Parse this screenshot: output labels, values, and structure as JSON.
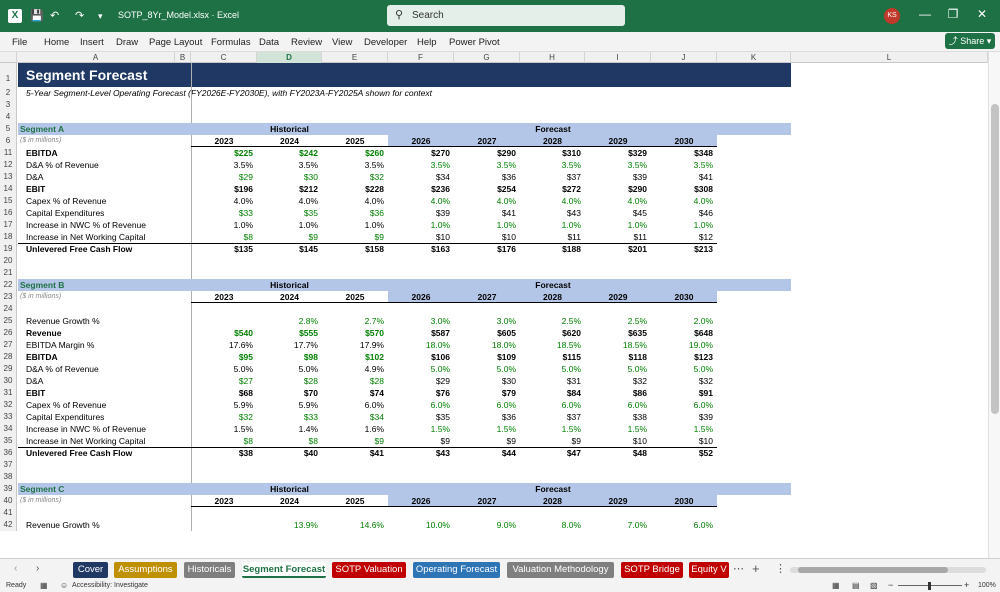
{
  "window": {
    "title": "SOTP_8Yr_Model.xlsx",
    "app": "Excel",
    "search_placeholder": "Search",
    "user_initials": "KS",
    "app_icon": "X"
  },
  "ribbon": {
    "menus": [
      "File",
      "Home",
      "Insert",
      "Draw",
      "Page Layout",
      "Formulas",
      "Data",
      "Review",
      "View",
      "Developer",
      "Help",
      "Power Pivot"
    ],
    "share_label": "Share"
  },
  "grid": {
    "columns": [
      "A",
      "B",
      "C",
      "D",
      "E",
      "F",
      "G",
      "H",
      "I",
      "J",
      "K",
      "L"
    ],
    "row_numbers": [
      "1",
      "2",
      "3",
      "4",
      "5",
      "6",
      "11",
      "12",
      "13",
      "14",
      "15",
      "16",
      "17",
      "18",
      "19",
      "20",
      "21",
      "22",
      "23",
      "24",
      "25",
      "26",
      "27",
      "28",
      "29",
      "30",
      "31",
      "32",
      "33",
      "34",
      "35",
      "36",
      "37",
      "38",
      "39",
      "40",
      "41",
      "42"
    ],
    "title": "Segment Forecast",
    "subtitle": "5-Year Segment-Level Operating Forecast (FY2026E-FY2030E), with FY2023A-FY2025A shown for context",
    "units": "($ in millions)",
    "historical_label": "Historical",
    "forecast_label": "Forecast",
    "years": [
      "2023",
      "2024",
      "2025",
      "2026",
      "2027",
      "2028",
      "2029",
      "2030"
    ],
    "segments": [
      {
        "name": "Segment A",
        "rows": [
          {
            "label": "EBITDA",
            "bold": true,
            "values": [
              "$225",
              "$242",
              "$260",
              "$270",
              "$290",
              "$310",
              "$329",
              "$348"
            ],
            "green": [
              1,
              1,
              1,
              0,
              0,
              0,
              0,
              0
            ]
          },
          {
            "label": "D&A % of Revenue",
            "values": [
              "3.5%",
              "3.5%",
              "3.5%",
              "3.5%",
              "3.5%",
              "3.5%",
              "3.5%",
              "3.5%"
            ],
            "green": [
              0,
              0,
              0,
              1,
              1,
              1,
              1,
              1
            ]
          },
          {
            "label": "D&A",
            "values": [
              "$29",
              "$30",
              "$32",
              "$34",
              "$36",
              "$37",
              "$39",
              "$41"
            ],
            "green": [
              1,
              1,
              1,
              0,
              0,
              0,
              0,
              0
            ]
          },
          {
            "label": "EBIT",
            "bold": true,
            "values": [
              "$196",
              "$212",
              "$228",
              "$236",
              "$254",
              "$272",
              "$290",
              "$308"
            ],
            "green": [
              0,
              0,
              0,
              0,
              0,
              0,
              0,
              0
            ]
          },
          {
            "label": "Capex % of Revenue",
            "values": [
              "4.0%",
              "4.0%",
              "4.0%",
              "4.0%",
              "4.0%",
              "4.0%",
              "4.0%",
              "4.0%"
            ],
            "green": [
              0,
              0,
              0,
              1,
              1,
              1,
              1,
              1
            ]
          },
          {
            "label": "Capital Expenditures",
            "values": [
              "$33",
              "$35",
              "$36",
              "$39",
              "$41",
              "$43",
              "$45",
              "$46"
            ],
            "green": [
              1,
              1,
              1,
              0,
              0,
              0,
              0,
              0
            ]
          },
          {
            "label": "Increase in NWC % of Revenue",
            "values": [
              "1.0%",
              "1.0%",
              "1.0%",
              "1.0%",
              "1.0%",
              "1.0%",
              "1.0%",
              "1.0%"
            ],
            "green": [
              0,
              0,
              0,
              1,
              1,
              1,
              1,
              1
            ]
          },
          {
            "label": "Increase in Net Working Capital",
            "values": [
              "$8",
              "$9",
              "$9",
              "$10",
              "$10",
              "$11",
              "$11",
              "$12"
            ],
            "green": [
              1,
              1,
              1,
              0,
              0,
              0,
              0,
              0
            ]
          },
          {
            "label": "Unlevered Free Cash Flow",
            "bold": true,
            "total": true,
            "values": [
              "$135",
              "$145",
              "$158",
              "$163",
              "$176",
              "$188",
              "$201",
              "$213"
            ],
            "green": [
              0,
              0,
              0,
              0,
              0,
              0,
              0,
              0
            ]
          }
        ]
      },
      {
        "name": "Segment B",
        "rows": [
          {
            "label": "",
            "values": [
              "",
              "",
              "",
              "",
              "",
              "",
              "",
              ""
            ],
            "green": [
              0,
              0,
              0,
              0,
              0,
              0,
              0,
              0
            ]
          },
          {
            "label": "Revenue Growth %",
            "values": [
              "",
              "2.8%",
              "2.7%",
              "3.0%",
              "3.0%",
              "2.5%",
              "2.5%",
              "2.0%"
            ],
            "green": [
              0,
              1,
              1,
              1,
              1,
              1,
              1,
              1
            ]
          },
          {
            "label": "Revenue",
            "bold": true,
            "values": [
              "$540",
              "$555",
              "$570",
              "$587",
              "$605",
              "$620",
              "$635",
              "$648"
            ],
            "green": [
              1,
              1,
              1,
              0,
              0,
              0,
              0,
              0
            ]
          },
          {
            "label": "EBITDA Margin %",
            "values": [
              "17.6%",
              "17.7%",
              "17.9%",
              "18.0%",
              "18.0%",
              "18.5%",
              "18.5%",
              "19.0%"
            ],
            "green": [
              0,
              0,
              0,
              1,
              1,
              1,
              1,
              1
            ]
          },
          {
            "label": "EBITDA",
            "bold": true,
            "values": [
              "$95",
              "$98",
              "$102",
              "$106",
              "$109",
              "$115",
              "$118",
              "$123"
            ],
            "green": [
              1,
              1,
              1,
              0,
              0,
              0,
              0,
              0
            ]
          },
          {
            "label": "D&A % of Revenue",
            "values": [
              "5.0%",
              "5.0%",
              "4.9%",
              "5.0%",
              "5.0%",
              "5.0%",
              "5.0%",
              "5.0%"
            ],
            "green": [
              0,
              0,
              0,
              1,
              1,
              1,
              1,
              1
            ]
          },
          {
            "label": "D&A",
            "values": [
              "$27",
              "$28",
              "$28",
              "$29",
              "$30",
              "$31",
              "$32",
              "$32"
            ],
            "green": [
              1,
              1,
              1,
              0,
              0,
              0,
              0,
              0
            ]
          },
          {
            "label": "EBIT",
            "bold": true,
            "values": [
              "$68",
              "$70",
              "$74",
              "$76",
              "$79",
              "$84",
              "$86",
              "$91"
            ],
            "green": [
              0,
              0,
              0,
              0,
              0,
              0,
              0,
              0
            ]
          },
          {
            "label": "Capex % of Revenue",
            "values": [
              "5.9%",
              "5.9%",
              "6.0%",
              "6.0%",
              "6.0%",
              "6.0%",
              "6.0%",
              "6.0%"
            ],
            "green": [
              0,
              0,
              0,
              1,
              1,
              1,
              1,
              1
            ]
          },
          {
            "label": "Capital Expenditures",
            "values": [
              "$32",
              "$33",
              "$34",
              "$35",
              "$36",
              "$37",
              "$38",
              "$39"
            ],
            "green": [
              1,
              1,
              1,
              0,
              0,
              0,
              0,
              0
            ]
          },
          {
            "label": "Increase in NWC % of Revenue",
            "values": [
              "1.5%",
              "1.4%",
              "1.6%",
              "1.5%",
              "1.5%",
              "1.5%",
              "1.5%",
              "1.5%"
            ],
            "green": [
              0,
              0,
              0,
              1,
              1,
              1,
              1,
              1
            ]
          },
          {
            "label": "Increase in Net Working Capital",
            "values": [
              "$8",
              "$8",
              "$9",
              "$9",
              "$9",
              "$9",
              "$10",
              "$10"
            ],
            "green": [
              1,
              1,
              1,
              0,
              0,
              0,
              0,
              0
            ]
          },
          {
            "label": "Unlevered Free Cash Flow",
            "bold": true,
            "total": true,
            "values": [
              "$38",
              "$40",
              "$41",
              "$43",
              "$44",
              "$47",
              "$48",
              "$52"
            ],
            "green": [
              0,
              0,
              0,
              0,
              0,
              0,
              0,
              0
            ]
          }
        ]
      },
      {
        "name": "Segment C",
        "rows": [
          {
            "label": "",
            "values": [
              "",
              "",
              "",
              "",
              "",
              "",
              "",
              ""
            ],
            "green": [
              0,
              0,
              0,
              0,
              0,
              0,
              0,
              0
            ]
          },
          {
            "label": "Revenue Growth %",
            "values": [
              "",
              "13.9%",
              "14.6%",
              "10.0%",
              "9.0%",
              "8.0%",
              "7.0%",
              "6.0%"
            ],
            "green": [
              0,
              1,
              1,
              1,
              1,
              1,
              1,
              1
            ]
          }
        ]
      }
    ]
  },
  "sheet_tabs": [
    {
      "label": "Cover",
      "color": "#1f3864",
      "active": false
    },
    {
      "label": "Assumptions",
      "color": "#bf9000",
      "active": false
    },
    {
      "label": "Historicals",
      "color": "#7f7f7f",
      "active": false
    },
    {
      "label": "Segment Forecast",
      "color": "#2e75b6",
      "active": true
    },
    {
      "label": "SOTP Valuation",
      "color": "#c00000",
      "active": false
    },
    {
      "label": "Operating Forecast",
      "color": "#2e75b6",
      "active": false
    },
    {
      "label": "Valuation Methodology",
      "color": "#7f7f7f",
      "active": false
    },
    {
      "label": "SOTP Bridge",
      "color": "#c00000",
      "active": false
    },
    {
      "label": "Equity V",
      "color": "#c00000",
      "active": false
    }
  ],
  "status": {
    "ready": "Ready",
    "accessibility": "Accessibility: Investigate",
    "zoom": "100%"
  },
  "colors": {
    "header_navy": "#1f3864",
    "section_band": "#b4c6e7",
    "forecast_band": "#b4c6e7",
    "green_input": "#008000"
  }
}
